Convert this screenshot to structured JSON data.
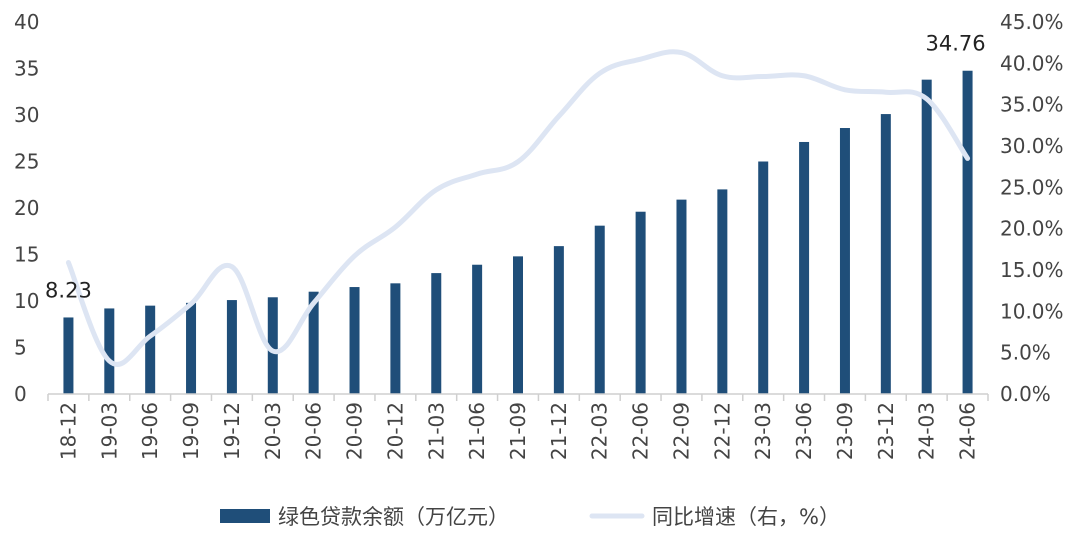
{
  "chart_data": {
    "type": "bar+line",
    "categories": [
      "18-12",
      "19-03",
      "19-06",
      "19-09",
      "19-12",
      "20-03",
      "20-06",
      "20-09",
      "20-12",
      "21-03",
      "21-06",
      "21-09",
      "21-12",
      "22-03",
      "22-06",
      "22-09",
      "22-12",
      "23-03",
      "23-06",
      "23-09",
      "23-12",
      "24-03",
      "24-06"
    ],
    "series": [
      {
        "name": "绿色贷款余额（万亿元）",
        "type": "bar",
        "axis": "left",
        "color": "#1f4e79",
        "values": [
          8.23,
          9.2,
          9.5,
          9.8,
          10.1,
          10.4,
          11.0,
          11.5,
          11.9,
          13.0,
          13.9,
          14.8,
          15.9,
          18.1,
          19.6,
          20.9,
          22.0,
          25.0,
          27.1,
          28.6,
          30.1,
          33.8,
          34.76
        ]
      },
      {
        "name": "同比增速（右，%）",
        "type": "line",
        "axis": "right",
        "color": "#dde5f3",
        "values": [
          15.9,
          4.0,
          7.0,
          10.9,
          15.4,
          5.2,
          11.0,
          16.7,
          20.2,
          24.7,
          26.6,
          28.1,
          33.6,
          38.8,
          40.5,
          41.3,
          38.5,
          38.4,
          38.5,
          36.8,
          36.5,
          35.7,
          28.5
        ]
      }
    ],
    "y_left": {
      "min": 0,
      "max": 40,
      "ticks": [
        0,
        5,
        10,
        15,
        20,
        25,
        30,
        35,
        40
      ]
    },
    "y_right": {
      "min": 0,
      "max": 45,
      "ticks": [
        "0.0%",
        "5.0%",
        "10.0%",
        "15.0%",
        "20.0%",
        "25.0%",
        "30.0%",
        "35.0%",
        "40.0%",
        "45.0%"
      ]
    },
    "data_labels": {
      "first": "8.23",
      "last": "34.76"
    },
    "legend": {
      "position": "bottom",
      "items": [
        "绿色贷款余额（万亿元）",
        "同比增速（右，%）"
      ]
    },
    "grid": false
  }
}
